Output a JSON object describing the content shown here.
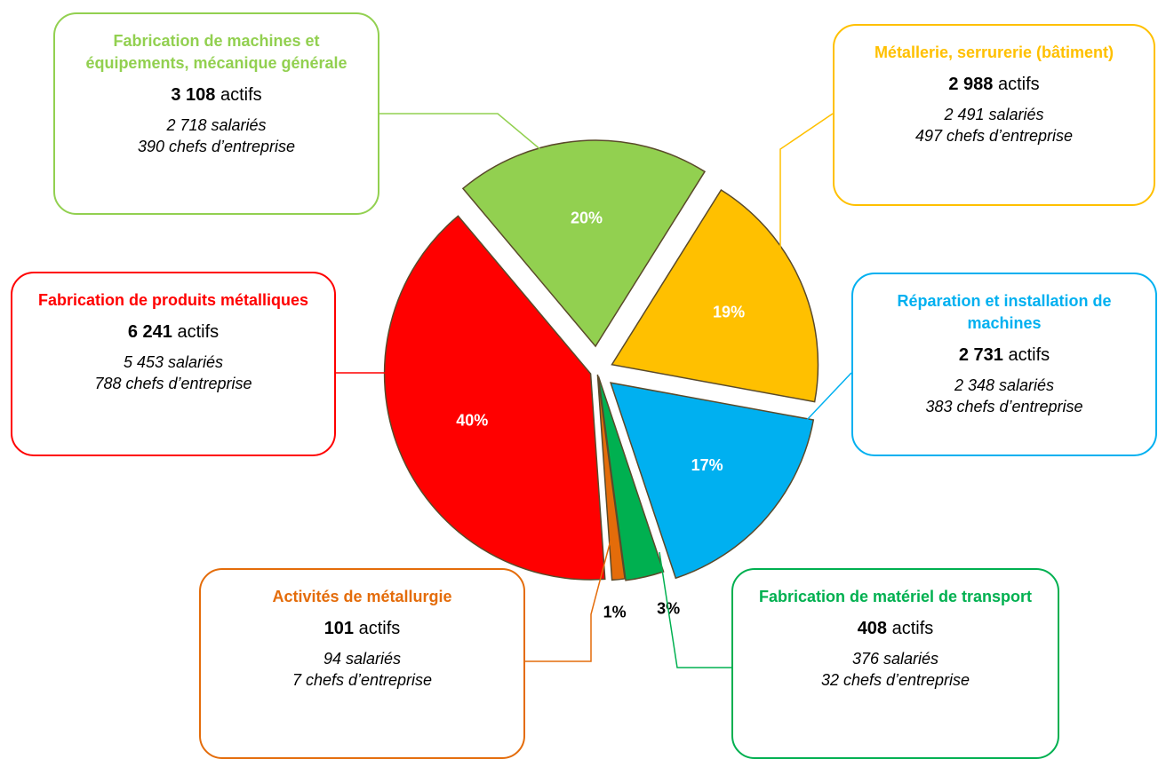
{
  "chart_data": {
    "type": "pie",
    "categories": [
      "Métallerie, serrurerie (bâtiment)",
      "Réparation et installation de machines",
      "Fabrication de matériel de transport",
      "Activités de métallurgie",
      "Fabrication de produits métalliques",
      "Fabrication de machines et équipements, mécanique générale"
    ],
    "values": [
      19,
      17,
      3,
      1,
      40,
      20
    ],
    "value_labels": [
      "19%",
      "17%",
      "3%",
      "1%",
      "40%",
      "20%"
    ],
    "colors": [
      "#ffc000",
      "#00b0f0",
      "#00b050",
      "#e46c0a",
      "#ff0000",
      "#92d050"
    ],
    "details": [
      {
        "actifs": "2 988",
        "unit": "actifs",
        "salaries": "2 491 salariés",
        "chefs": "497 chefs d’entreprise"
      },
      {
        "actifs": "2 731",
        "unit": "actifs",
        "salaries": "2 348 salariés",
        "chefs": "383 chefs d’entreprise"
      },
      {
        "actifs": "408",
        "unit": "actifs",
        "salaries": "376 salariés",
        "chefs": "32 chefs d’entreprise"
      },
      {
        "actifs": "101",
        "unit": "actifs",
        "salaries": "94 salariés",
        "chefs": "7 chefs d’entreprise"
      },
      {
        "actifs": "6 241",
        "unit": "actifs",
        "salaries": "5 453 salariés",
        "chefs": "788 chefs d’entreprise"
      },
      {
        "actifs": "3 108",
        "unit": "actifs",
        "salaries": "2 718 salariés",
        "chefs": "390 chefs d’entreprise"
      }
    ]
  }
}
